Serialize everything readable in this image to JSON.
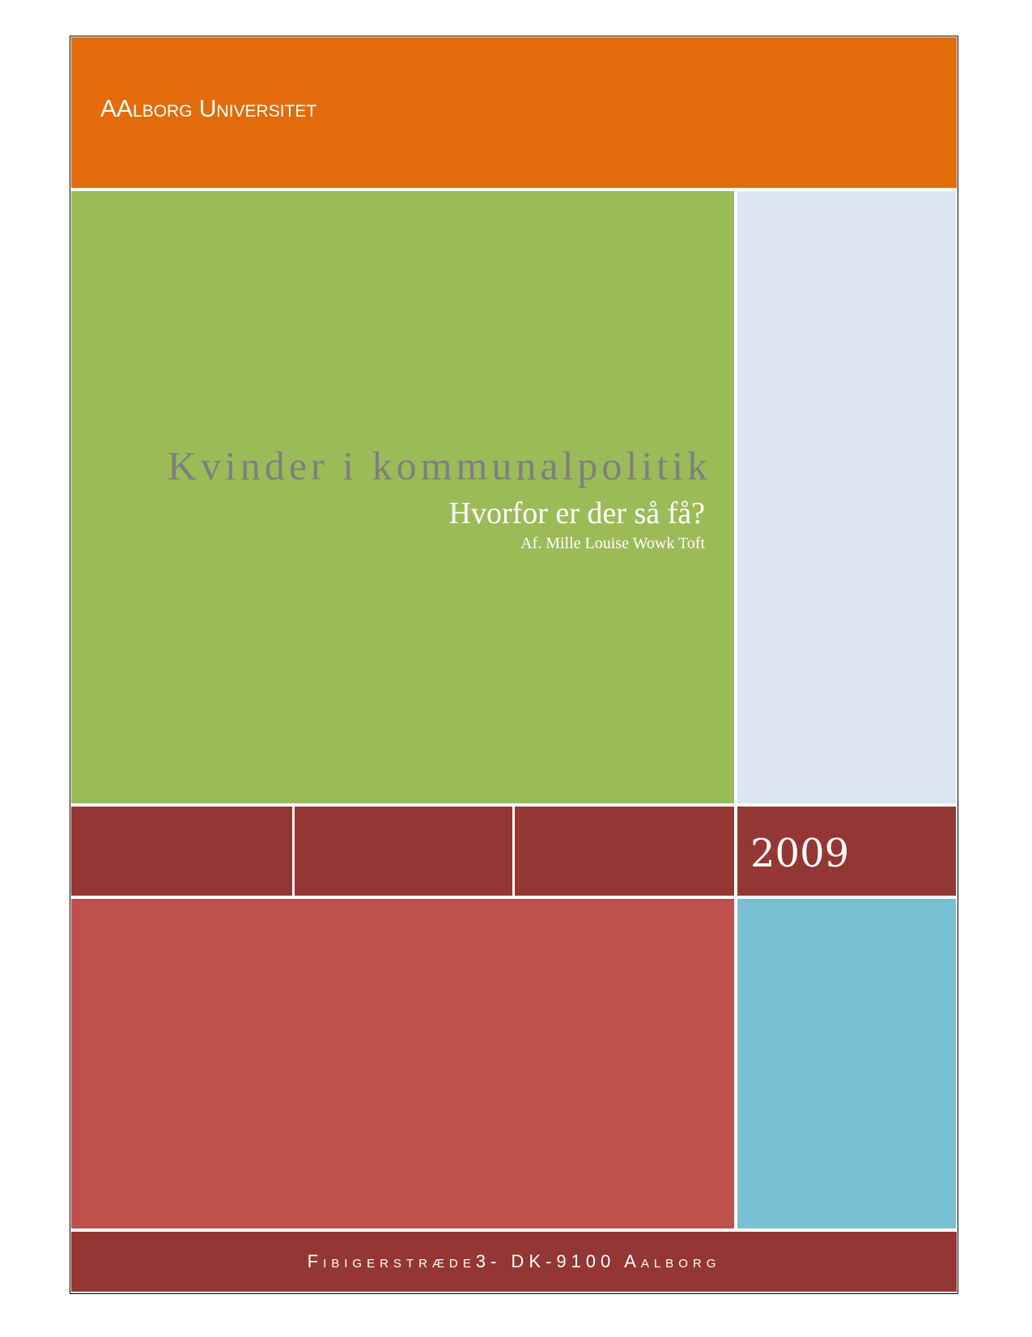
{
  "header": {
    "university": "AAlborg Universitet"
  },
  "title": "Kvinder i kommunalpolitik",
  "subtitle": "Hvorfor er der så få?",
  "author": "Af. Mille Louise Wowk Toft",
  "year": "2009",
  "footer": {
    "address": "Fibigerstræde3- DK-9100 Aalborg"
  }
}
